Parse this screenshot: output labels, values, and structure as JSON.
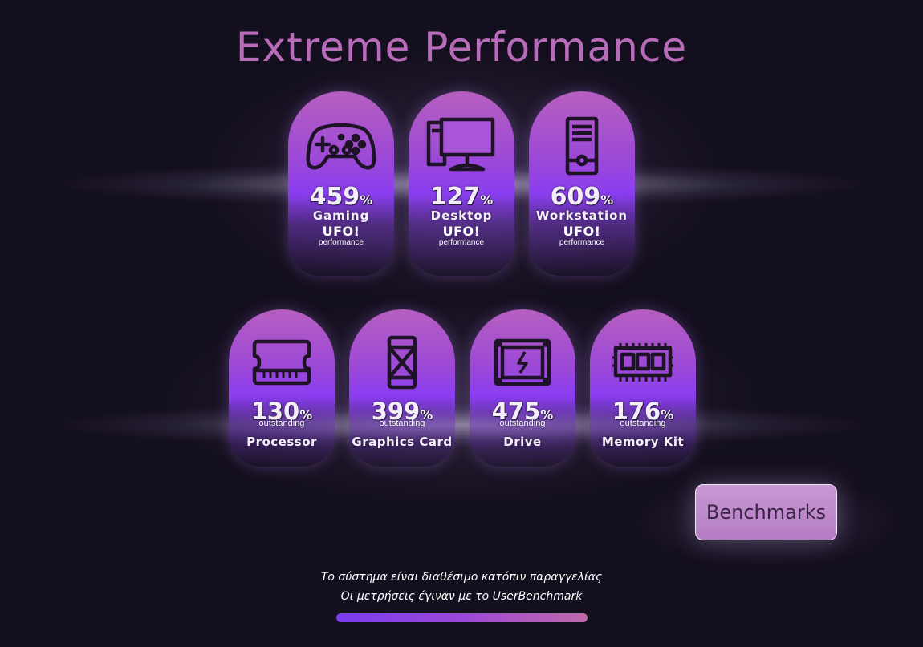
{
  "title": "Extreme Performance",
  "performance_cards": [
    {
      "score": "459",
      "unit": "%",
      "label": "Gaming",
      "brand": "UFO!",
      "brand_sub": "performance",
      "icon": "gamepad-icon"
    },
    {
      "score": "127",
      "unit": "%",
      "label": "Desktop",
      "brand": "UFO!",
      "brand_sub": "performance",
      "icon": "desktop-monitor-icon"
    },
    {
      "score": "609",
      "unit": "%",
      "label": "Workstation",
      "brand": "UFO!",
      "brand_sub": "performance",
      "icon": "tower-pc-icon"
    }
  ],
  "component_cards": [
    {
      "score": "130",
      "unit": "%",
      "sub": "outstanding",
      "label": "Processor",
      "icon": "cpu-icon"
    },
    {
      "score": "399",
      "unit": "%",
      "sub": "outstanding",
      "label": "Graphics Card",
      "icon": "graphics-card-icon"
    },
    {
      "score": "475",
      "unit": "%",
      "sub": "outstanding",
      "label": "Drive",
      "icon": "drive-icon"
    },
    {
      "score": "176",
      "unit": "%",
      "sub": "outstanding",
      "label": "Memory Kit",
      "icon": "memory-icon"
    }
  ],
  "benchmarks_button": "Benchmarks",
  "notes": {
    "line1": "Το σύστημα είναι διαθέσιμο κατόπιν παραγγελίας",
    "line2": "Οι μετρήσεις έγιναν με το UserBenchmark"
  },
  "colors": {
    "background": "#140f1e",
    "title": "#b86bb8",
    "card_top": "#b65fc0",
    "card_mid": "#8a3df0",
    "button": "#c898d2",
    "progress_start": "#7a3cf0",
    "progress_end": "#c06aa8"
  }
}
